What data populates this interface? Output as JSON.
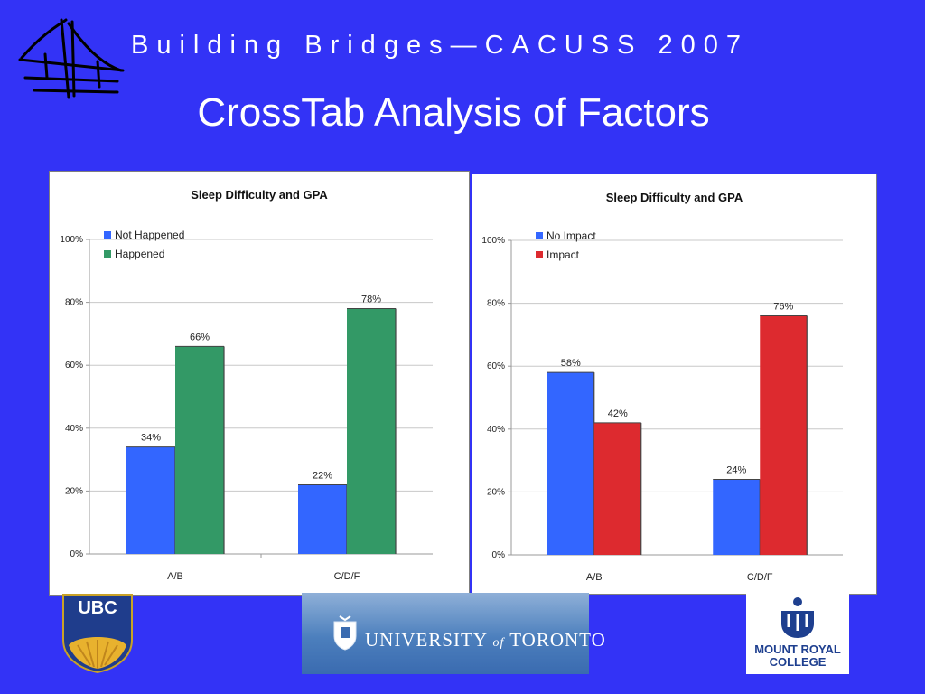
{
  "header": {
    "series_title": "Building Bridges—CACUSS 2007",
    "slide_title": "CrossTab Analysis of Factors"
  },
  "colors": {
    "background": "#3333f6",
    "blue_series": "#3366ff",
    "green_series": "#339966",
    "red_series": "#dd2a2f"
  },
  "chart_data": [
    {
      "type": "bar",
      "title": "Sleep Difficulty and GPA",
      "categories": [
        "A/B",
        "C/D/F"
      ],
      "series": [
        {
          "name": "Not Happened",
          "values": [
            34,
            22
          ],
          "labels": [
            "34%",
            "22%"
          ],
          "color": "#3366ff"
        },
        {
          "name": "Happened",
          "values": [
            66,
            78
          ],
          "labels": [
            "66%",
            "78%"
          ],
          "color": "#339966"
        }
      ],
      "ylim": [
        0,
        100
      ],
      "yticks": [
        "0%",
        "20%",
        "40%",
        "60%",
        "80%",
        "100%"
      ],
      "grid": true,
      "legend": "top-left"
    },
    {
      "type": "bar",
      "title": "Sleep Difficulty and GPA",
      "categories": [
        "A/B",
        "C/D/F"
      ],
      "series": [
        {
          "name": "No Impact",
          "values": [
            58,
            24
          ],
          "labels": [
            "58%",
            "24%"
          ],
          "color": "#3366ff"
        },
        {
          "name": "Impact",
          "values": [
            42,
            76
          ],
          "labels": [
            "42%",
            "76%"
          ],
          "color": "#dd2a2f"
        }
      ],
      "ylim": [
        0,
        100
      ],
      "yticks": [
        "0%",
        "20%",
        "40%",
        "60%",
        "80%",
        "100%"
      ],
      "grid": true,
      "legend": "top-left"
    }
  ],
  "logos": {
    "ubc": "UBC",
    "toronto": {
      "main1": "UNIVERSITY",
      "of": "of",
      "main2": "TORONTO"
    },
    "mount_royal": {
      "line1": "MOUNT ROYAL",
      "line2": "COLLEGE"
    }
  }
}
